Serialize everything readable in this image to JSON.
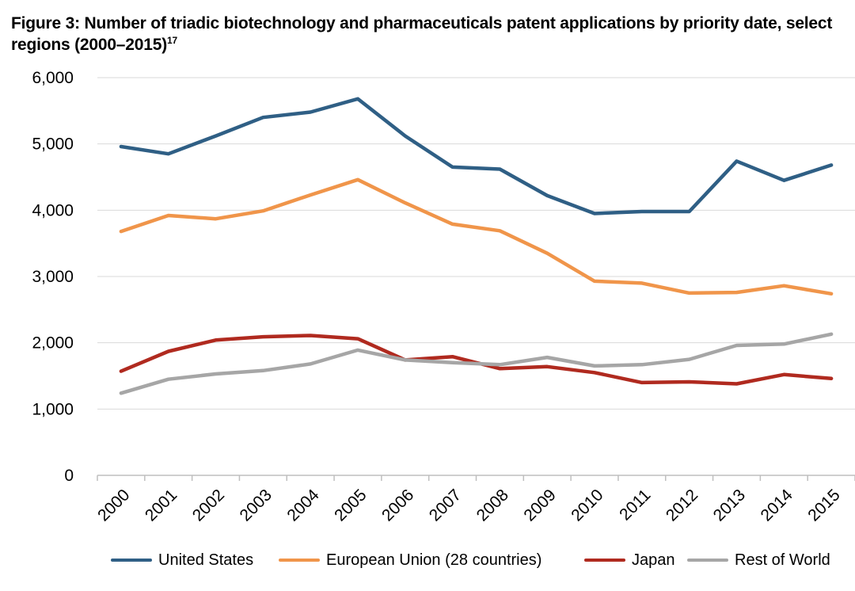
{
  "title": "Figure 3: Number of triadic biotechnology and pharmaceuticals patent applications by priority date, select regions (2000–2015)",
  "title_footnote": "17",
  "chart_data": {
    "type": "line",
    "title": "Number of triadic biotechnology and pharmaceuticals patent applications by priority date, select regions (2000–2015)",
    "xlabel": "",
    "ylabel": "",
    "ylim": [
      0,
      6000
    ],
    "yticks": [
      0,
      1000,
      2000,
      3000,
      4000,
      5000,
      6000
    ],
    "ytick_labels": [
      "0",
      "1,000",
      "2,000",
      "3,000",
      "4,000",
      "5,000",
      "6,000"
    ],
    "categories": [
      "2000",
      "2001",
      "2002",
      "2003",
      "2004",
      "2005",
      "2006",
      "2007",
      "2008",
      "2009",
      "2010",
      "2011",
      "2012",
      "2013",
      "2014",
      "2015"
    ],
    "grid": true,
    "legend_position": "bottom",
    "series": [
      {
        "name": "United States",
        "color": "#2F5F85",
        "values": [
          4960,
          4850,
          5120,
          5400,
          5480,
          5680,
          5120,
          4650,
          4620,
          4220,
          3950,
          3980,
          3980,
          4740,
          4450,
          4680
        ]
      },
      {
        "name": "European Union (28 countries)",
        "color": "#F0954A",
        "values": [
          3680,
          3920,
          3870,
          3990,
          4230,
          4460,
          4110,
          3790,
          3690,
          3350,
          2930,
          2900,
          2750,
          2760,
          2860,
          2740
        ]
      },
      {
        "name": "Japan",
        "color": "#B02A1F",
        "values": [
          1570,
          1870,
          2040,
          2090,
          2110,
          2060,
          1740,
          1790,
          1610,
          1640,
          1550,
          1400,
          1410,
          1380,
          1520,
          1460
        ]
      },
      {
        "name": "Rest of World",
        "color": "#A6A6A6",
        "values": [
          1240,
          1450,
          1530,
          1580,
          1680,
          1890,
          1740,
          1700,
          1670,
          1780,
          1650,
          1670,
          1750,
          1960,
          1980,
          2130
        ]
      }
    ]
  }
}
